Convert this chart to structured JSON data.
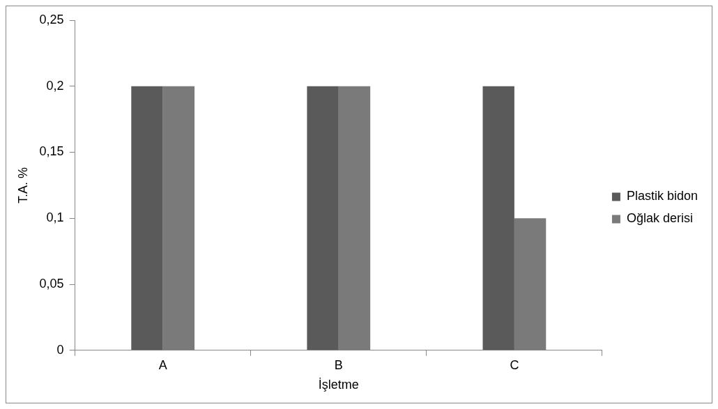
{
  "chart_data": {
    "type": "bar",
    "xlabel": "İşletme",
    "ylabel": "T.A. %",
    "categories": [
      "A",
      "B",
      "C"
    ],
    "series": [
      {
        "name": "Plastik bidon",
        "color": "#5a5a5a",
        "values": [
          0.2,
          0.2,
          0.2
        ]
      },
      {
        "name": "Oğlak derisi",
        "color": "#7a7a7a",
        "values": [
          0.2,
          0.2,
          0.1
        ]
      }
    ],
    "ylim": [
      0,
      0.25
    ],
    "yticks": [
      0,
      {
        "value": 0.05,
        "label": "0,05"
      },
      {
        "value": 0.1,
        "label": "0,1"
      },
      {
        "value": 0.15,
        "label": "0,15"
      },
      {
        "value": 0.2,
        "label": "0,2"
      },
      {
        "value": 0.25,
        "label": "0,25"
      }
    ],
    "grid": false,
    "legend": "right"
  }
}
